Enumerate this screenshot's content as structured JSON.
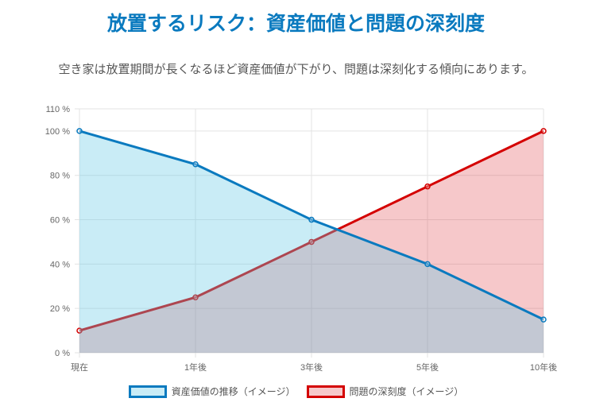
{
  "title": "放置するリスク：資産価値と問題の深刻度",
  "subtitle": "空き家は放置期間が長くなるほど資産価値が下がり、問題は深刻化する傾向にあります。",
  "chart_data": {
    "type": "area",
    "categories": [
      "現在",
      "1年後",
      "3年後",
      "5年後",
      "10年後"
    ],
    "series": [
      {
        "name": "資産価値の推移（イメージ）",
        "values": [
          100,
          85,
          60,
          40,
          15
        ],
        "color": "#0a7abf",
        "fill": "#c9ecf6"
      },
      {
        "name": "問題の深刻度（イメージ）",
        "values": [
          10,
          25,
          50,
          75,
          100
        ],
        "color": "#d40000",
        "fill": "#f6c9cb"
      }
    ],
    "ylim": [
      0,
      110
    ],
    "yticks": [
      0,
      20,
      40,
      60,
      80,
      100,
      110
    ],
    "ytick_suffix": " %",
    "grid": true,
    "legend": "bottom"
  }
}
